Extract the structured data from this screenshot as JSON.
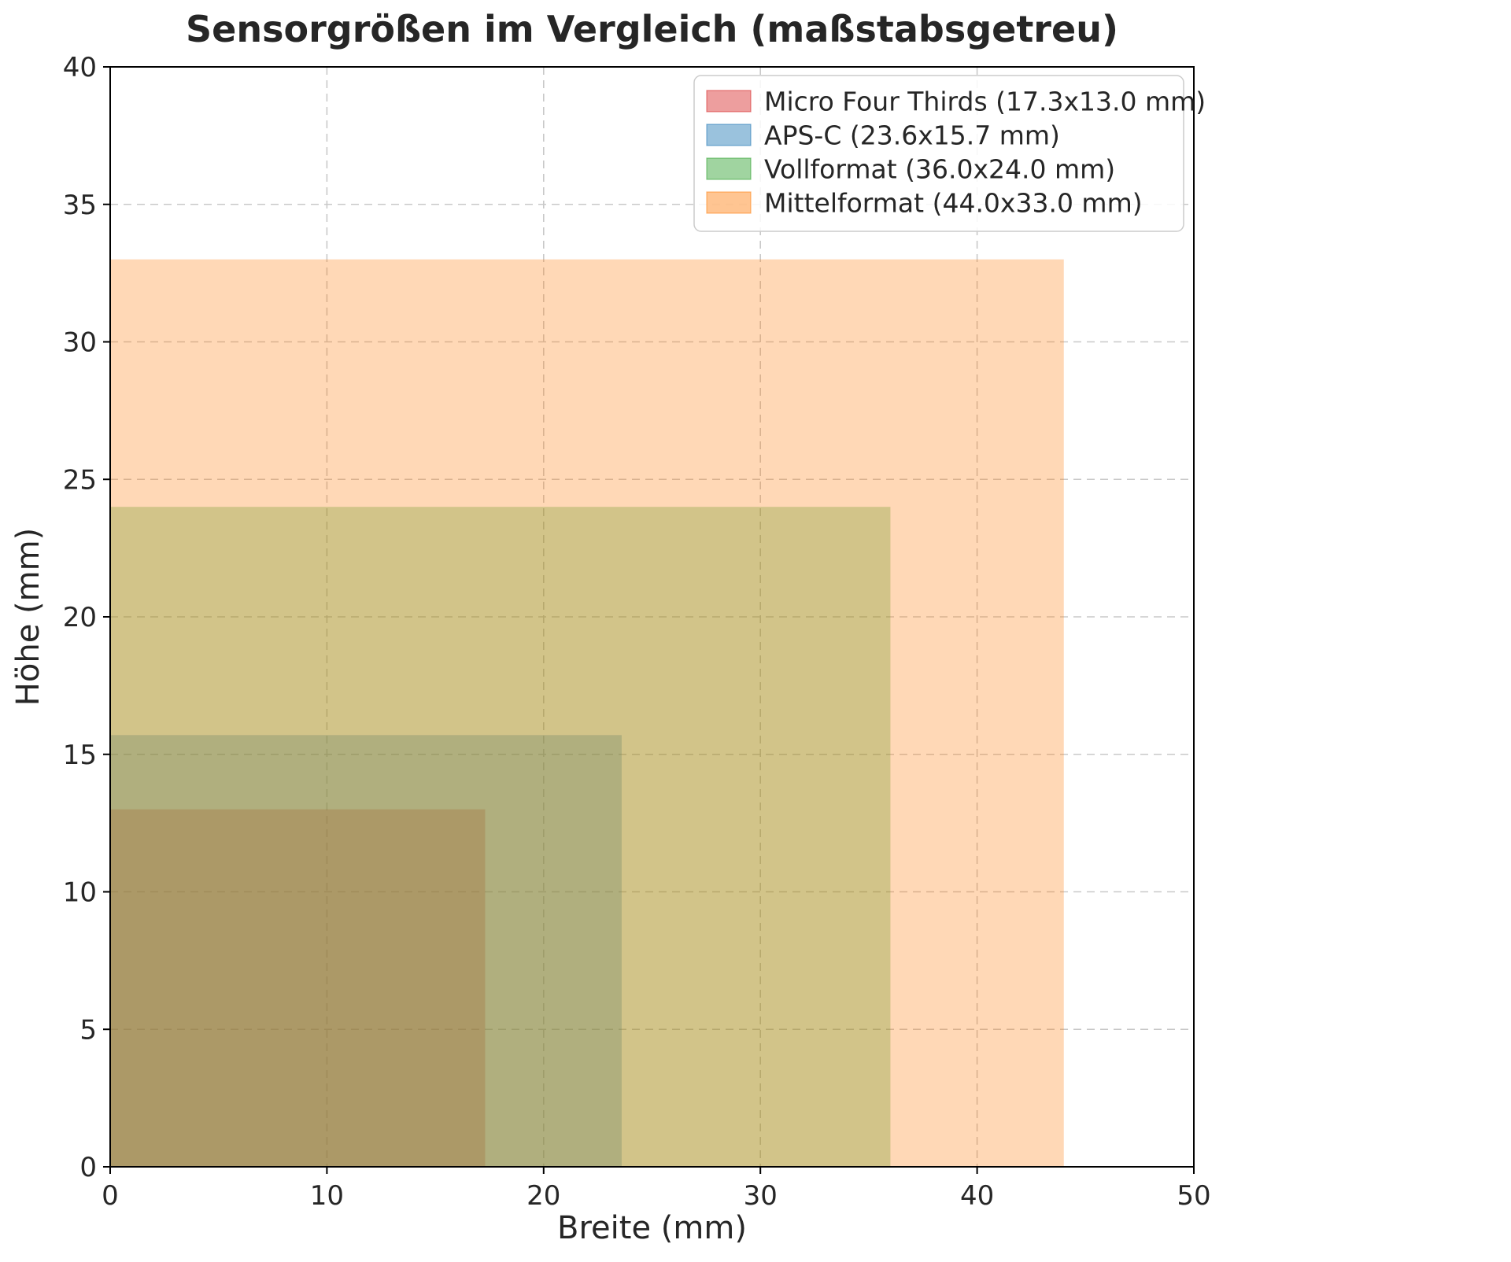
{
  "chart_data": {
    "type": "area",
    "subtype": "true-scale-overlapping-rectangles",
    "title": "Sensorgrößen im Vergleich (maßstabsgetreu)",
    "xlabel": "Breite (mm)",
    "ylabel": "Höhe (mm)",
    "xlim": [
      0,
      50
    ],
    "ylim": [
      0,
      40
    ],
    "xticks": [
      0,
      10,
      20,
      30,
      40,
      50
    ],
    "yticks": [
      0,
      5,
      10,
      15,
      20,
      25,
      30,
      35,
      40
    ],
    "grid": true,
    "grid_style": "dashed",
    "legend_position": "upper right",
    "fill_alpha": 0.3,
    "series": [
      {
        "id": "mft",
        "name": "Micro Four Thirds",
        "label": "Micro Four Thirds (17.3x13.0 mm)",
        "width_mm": 17.3,
        "height_mm": 13.0,
        "color": "#d62728"
      },
      {
        "id": "apsc",
        "name": "APS-C",
        "label": "APS-C (23.6x15.7 mm)",
        "width_mm": 23.6,
        "height_mm": 15.7,
        "color": "#1f77b4"
      },
      {
        "id": "vollformat",
        "name": "Vollformat",
        "label": "Vollformat (36.0x24.0 mm)",
        "width_mm": 36.0,
        "height_mm": 24.0,
        "color": "#2ca02c"
      },
      {
        "id": "mittelformat",
        "name": "Mittelformat",
        "label": "Mittelformat (44.0x33.0 mm)",
        "width_mm": 44.0,
        "height_mm": 33.0,
        "color": "#ff7f0e"
      }
    ]
  }
}
